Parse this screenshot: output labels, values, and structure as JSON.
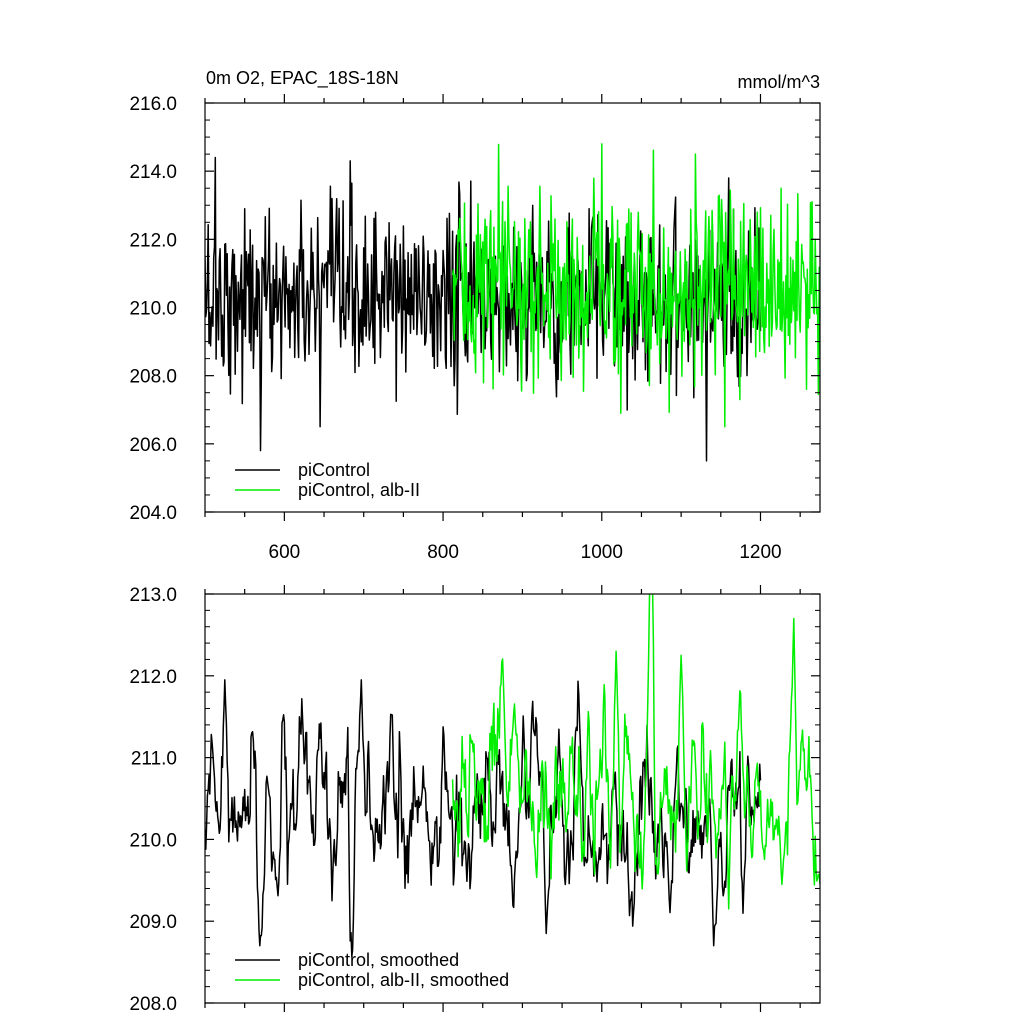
{
  "figure": {
    "title_left": "0m O2, EPAC_18S-18N",
    "units": "mmol/m^3"
  },
  "chart_data": [
    {
      "type": "line",
      "title": "0m O2, EPAC_18S-18N",
      "units_label": "mmol/m^3",
      "xlim": [
        500,
        1275
      ],
      "ylim": [
        204,
        216
      ],
      "xticks": [
        600,
        800,
        1000,
        1200
      ],
      "xtick_labels": [
        "600",
        "800",
        "1000",
        "1200"
      ],
      "yticks": [
        204,
        206,
        208,
        210,
        212,
        214,
        216
      ],
      "ytick_labels": [
        "204.0",
        "206.0",
        "208.0",
        "210.0",
        "212.0",
        "214.0",
        "216.0"
      ],
      "grid": false,
      "legend": "bottom-left",
      "series": [
        {
          "name": "piControl",
          "color": "#000000",
          "x_start": 500,
          "x_end": 1200,
          "mean": 210.3,
          "noise_sd": 1.25,
          "peaks": [
            [
              513,
              214.4
            ],
            [
              570,
              205.8
            ],
            [
              645,
              206.5
            ],
            [
              683,
              214.3
            ],
            [
              1132,
              205.5
            ],
            [
              1160,
              213.8
            ]
          ]
        },
        {
          "name": "piControl, alb-II",
          "color": "#00ee00",
          "x_start": 812,
          "x_end": 1275,
          "mean": 210.6,
          "noise_sd": 1.35,
          "peaks": [
            [
              1000,
              214.8
            ],
            [
              1118,
              214.5
            ],
            [
              1155,
              206.5
            ],
            [
              1258,
              207.6
            ]
          ]
        }
      ]
    },
    {
      "type": "line",
      "title": "",
      "xlim": [
        500,
        1275
      ],
      "ylim": [
        208,
        213
      ],
      "xticks": [
        600,
        800,
        1000,
        1200
      ],
      "xtick_labels": [
        "",
        "",
        "",
        ""
      ],
      "yticks": [
        208,
        209,
        210,
        211,
        212,
        213
      ],
      "ytick_labels": [
        "208.0",
        "209.0",
        "210.0",
        "211.0",
        "212.0",
        "213.0"
      ],
      "grid": false,
      "legend": "bottom-left",
      "series": [
        {
          "name": "piControl, smoothed",
          "color": "#000000",
          "x_start": 500,
          "x_end": 1200,
          "mean": 210.3,
          "noise_sd": 0.55,
          "peaks": [
            [
              525,
              211.95
            ],
            [
              569,
              208.7
            ],
            [
              697,
              211.95
            ],
            [
              930,
              208.85
            ],
            [
              1141,
              208.7
            ]
          ]
        },
        {
          "name": "piControl, alb-II, smoothed",
          "color": "#00ee00",
          "x_start": 812,
          "x_end": 1275,
          "mean": 210.6,
          "noise_sd": 0.6,
          "peaks": [
            [
              1018,
              212.3
            ],
            [
              1100,
              212.25
            ],
            [
              1242,
              212.7
            ],
            [
              1160,
              209.15
            ],
            [
              1227,
              209.45
            ]
          ]
        }
      ]
    }
  ]
}
